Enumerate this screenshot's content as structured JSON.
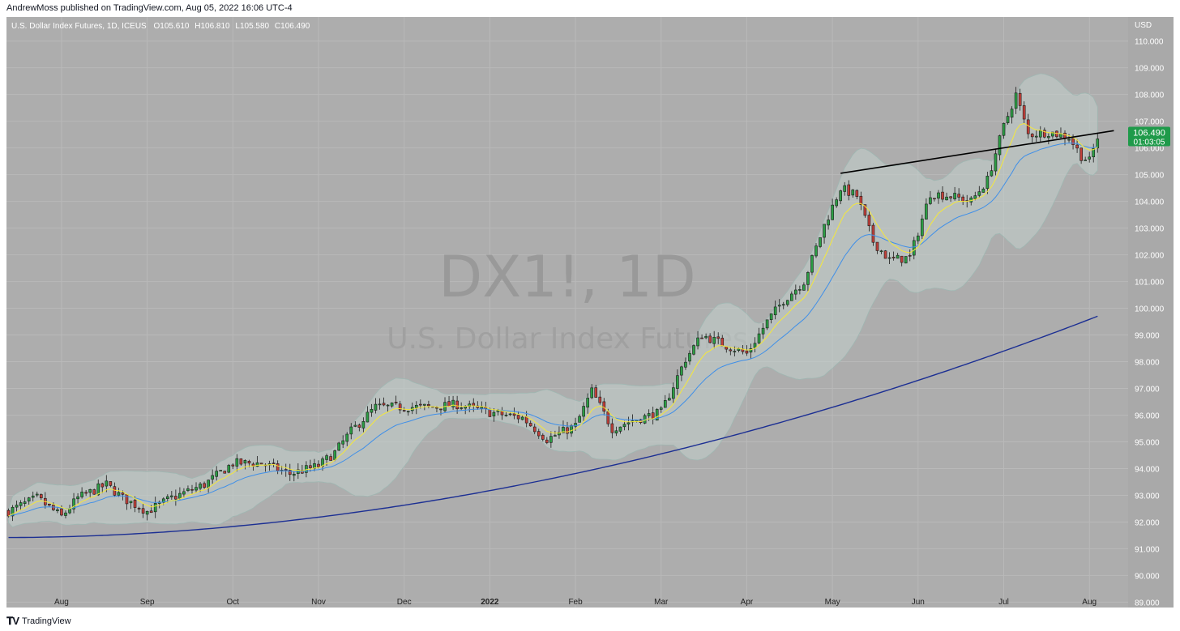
{
  "header": {
    "byline": "AndrewMoss published on TradingView.com, Aug 05, 2022 16:06 UTC-4"
  },
  "footer": {
    "brand": "TradingView"
  },
  "colors": {
    "pane_bg": "#adadad",
    "axis_bg": "#a9a9a9",
    "up": "#2c9e44",
    "down": "#c2403a",
    "ema_fast": "#f5e83a",
    "ema_slow": "#3f8fe8",
    "sma_long": "#1c2f93",
    "band_fill": "#c2cfcc",
    "price_badge": "#1f9a4a"
  },
  "chart_data": {
    "type": "candlestick",
    "symbol_line": {
      "name": "U.S. Dollar Index Futures, 1D, ICEUS",
      "o_label": "O",
      "o": "105.610",
      "h_label": "H",
      "h": "106.810",
      "l_label": "L",
      "l": "105.580",
      "c_label": "C",
      "c": "106.490"
    },
    "watermark": {
      "symbol": "DX1!, 1D",
      "name": "U.S. Dollar Index Futures"
    },
    "currency": "USD",
    "ylim": [
      88.8,
      110.9
    ],
    "y_ticks": [
      "110.000",
      "109.000",
      "108.000",
      "107.000",
      "106.000",
      "105.000",
      "104.000",
      "103.000",
      "102.000",
      "101.000",
      "100.000",
      "99.000",
      "98.000",
      "97.000",
      "96.000",
      "95.000",
      "94.000",
      "93.000",
      "92.000",
      "91.000",
      "90.000",
      "89.000"
    ],
    "x_ticks": [
      "Aug",
      "Sep",
      "Oct",
      "Nov",
      "Dec",
      "2022",
      "Feb",
      "Mar",
      "Apr",
      "May",
      "Jun",
      "Jul",
      "Aug"
    ],
    "x_tick_index": [
      13,
      34,
      55,
      76,
      97,
      118,
      139,
      160,
      181,
      202,
      223,
      244,
      265
    ],
    "last_price": {
      "value": "106.490",
      "countdown": "01:03:05"
    },
    "trendline": {
      "from_index": 204,
      "from_price": 105.05,
      "to_index": 267,
      "to_price": 106.55,
      "extend_to_index": 271
    },
    "sma_long_anchor": {
      "start": 91.42,
      "end": 99.7
    },
    "close_path": [
      [
        0,
        92.4
      ],
      [
        7,
        92.9
      ],
      [
        13,
        92.2
      ],
      [
        17,
        92.9
      ],
      [
        24,
        93.4
      ],
      [
        28,
        92.9
      ],
      [
        34,
        92.4
      ],
      [
        40,
        92.9
      ],
      [
        48,
        93.4
      ],
      [
        55,
        94.2
      ],
      [
        62,
        94.2
      ],
      [
        69,
        93.8
      ],
      [
        76,
        94.1
      ],
      [
        80,
        94.6
      ],
      [
        84,
        95.4
      ],
      [
        90,
        96.3
      ],
      [
        97,
        96.3
      ],
      [
        104,
        96.3
      ],
      [
        110,
        96.4
      ],
      [
        118,
        96.1
      ],
      [
        126,
        95.9
      ],
      [
        132,
        95.1
      ],
      [
        139,
        95.6
      ],
      [
        143,
        96.9
      ],
      [
        148,
        95.5
      ],
      [
        153,
        95.8
      ],
      [
        160,
        96.1
      ],
      [
        166,
        98.1
      ],
      [
        170,
        99.0
      ],
      [
        176,
        98.6
      ],
      [
        181,
        98.3
      ],
      [
        186,
        99.5
      ],
      [
        190,
        100.3
      ],
      [
        195,
        101.0
      ],
      [
        200,
        103.1
      ],
      [
        204,
        104.5
      ],
      [
        208,
        104.2
      ],
      [
        212,
        102.5
      ],
      [
        216,
        101.8
      ],
      [
        221,
        101.9
      ],
      [
        226,
        104.3
      ],
      [
        231,
        104.2
      ],
      [
        236,
        104.0
      ],
      [
        240,
        104.8
      ],
      [
        244,
        106.8
      ],
      [
        247,
        108.0
      ],
      [
        250,
        106.5
      ],
      [
        255,
        106.6
      ],
      [
        260,
        106.4
      ],
      [
        263,
        105.7
      ],
      [
        265,
        105.5
      ],
      [
        267,
        106.4
      ]
    ]
  }
}
